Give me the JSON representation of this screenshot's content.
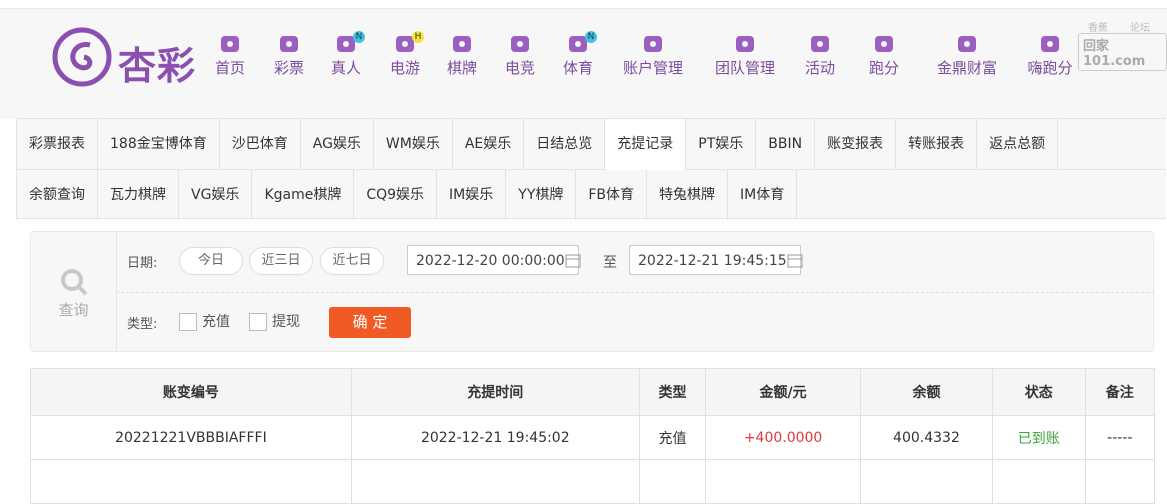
{
  "header": {
    "logo": "杏彩",
    "nav": [
      {
        "label": "首页"
      },
      {
        "label": "彩票"
      },
      {
        "label": "真人",
        "badge": "N"
      },
      {
        "label": "电游",
        "badge": "H"
      },
      {
        "label": "棋牌"
      },
      {
        "label": "电竞"
      },
      {
        "label": "体育",
        "badge": "N"
      },
      {
        "label": "账户管理"
      },
      {
        "label": "团队管理"
      },
      {
        "label": "活动"
      },
      {
        "label": "跑分"
      },
      {
        "label": "金鼎财富"
      },
      {
        "label": "嗨跑分"
      }
    ],
    "watermark": [
      "香蕉",
      "论坛",
      "回家101.com"
    ]
  },
  "tabs": {
    "rows": [
      [
        "彩票报表",
        "188金宝博体育",
        "沙巴体育",
        "AG娱乐",
        "WM娱乐",
        "AE娱乐",
        "日结总览",
        "充提记录",
        "PT娱乐",
        "BBIN",
        "账变报表",
        "转账报表",
        "返点总额"
      ],
      [
        "余额查询",
        "瓦力棋牌",
        "VG娱乐",
        "Kgame棋牌",
        "CQ9娱乐",
        "IM娱乐",
        "YY棋牌",
        "FB体育",
        "特兔棋牌",
        "IM体育"
      ]
    ],
    "active": [
      0,
      7
    ]
  },
  "search": {
    "icon_label": "查询",
    "date_label": "日期:",
    "quick": [
      "今日",
      "近三日",
      "近七日"
    ],
    "start": "2022-12-20 00:00:00",
    "to": "至",
    "end": "2022-12-21 19:45:15",
    "type_label": "类型:",
    "types": [
      "充值",
      "提现"
    ],
    "submit": "确 定"
  },
  "table": {
    "headers": [
      "账变编号",
      "充提时间",
      "类型",
      "金额/元",
      "余额",
      "状态",
      "备注"
    ],
    "rows": [
      [
        "20221221VBBBIAFFFI",
        "2022-12-21 19:45:02",
        "充值",
        "+400.0000",
        "400.4332",
        "已到账",
        "-----"
      ]
    ]
  }
}
